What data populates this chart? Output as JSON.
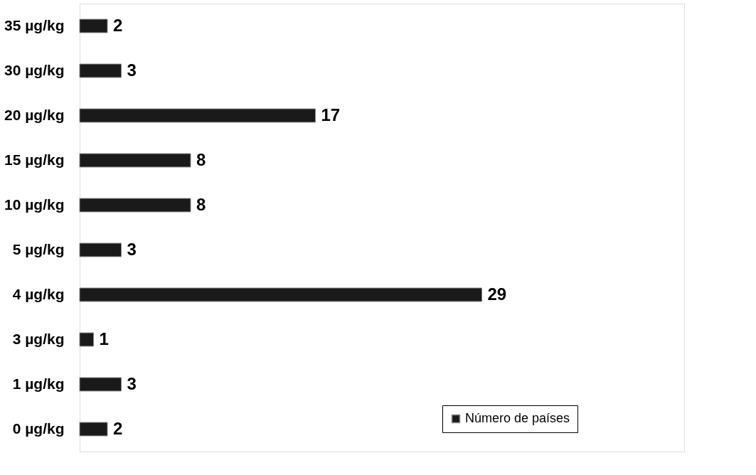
{
  "chart_data": {
    "type": "bar",
    "orientation": "horizontal",
    "categories": [
      "35 µg/kg",
      "30 µg/kg",
      "20 µg/kg",
      "15 µg/kg",
      "10 µg/kg",
      "5 µg/kg",
      "4 µg/kg",
      "3 µg/kg",
      "1 µg/kg",
      "0 µg/kg"
    ],
    "series": [
      {
        "name": "Número de países",
        "color": "#1a1a1a",
        "values": [
          2,
          3,
          17,
          8,
          8,
          3,
          29,
          1,
          3,
          2
        ]
      }
    ],
    "data_labels": true,
    "legend": "bottom right",
    "tick_labels": "y"
  }
}
